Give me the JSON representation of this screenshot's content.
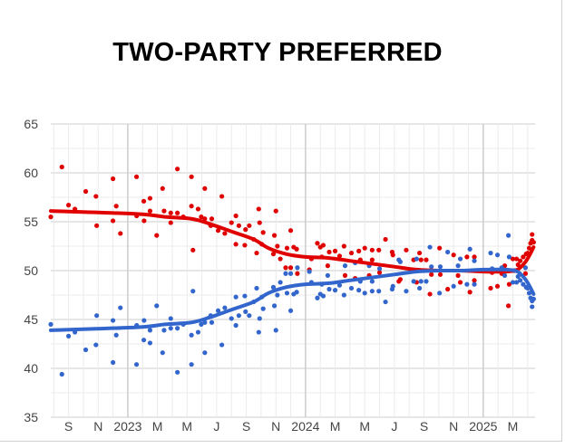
{
  "chart_data": {
    "type": "scatter",
    "title": "TWO-PARTY PREFERRED",
    "xlabel": "",
    "ylabel": "",
    "x_units": "months since January 2023",
    "xlim": [
      -5.2,
      27.5
    ],
    "ylim": [
      35,
      65
    ],
    "yticks": [
      35,
      40,
      45,
      50,
      55,
      60,
      65
    ],
    "xticks": [
      {
        "m": -4,
        "label": "S"
      },
      {
        "m": -2,
        "label": "N"
      },
      {
        "m": 0,
        "label": "2023"
      },
      {
        "m": 2,
        "label": "M"
      },
      {
        "m": 4,
        "label": "M"
      },
      {
        "m": 6,
        "label": "J"
      },
      {
        "m": 8,
        "label": "S"
      },
      {
        "m": 10,
        "label": "N"
      },
      {
        "m": 12,
        "label": "2024"
      },
      {
        "m": 14,
        "label": "M"
      },
      {
        "m": 16,
        "label": "M"
      },
      {
        "m": 18,
        "label": "J"
      },
      {
        "m": 20,
        "label": "S"
      },
      {
        "m": 22,
        "label": "N"
      },
      {
        "m": 24,
        "label": "2025"
      },
      {
        "m": 26,
        "label": "M"
      }
    ],
    "grid": true,
    "legend": "none",
    "colors": {
      "red": "#e00000",
      "blue": "#3366cc"
    },
    "series": [
      {
        "key": "red",
        "points": [
          [
            -5.2,
            55.5
          ],
          [
            -4.45,
            60.6
          ],
          [
            -4.0,
            56.7
          ],
          [
            -3.57,
            56.3
          ],
          [
            -2.84,
            58.1
          ],
          [
            -2.15,
            57.6
          ],
          [
            -2.1,
            54.6
          ],
          [
            -1.0,
            59.4
          ],
          [
            -1.0,
            55.1
          ],
          [
            -0.78,
            56.6
          ],
          [
            -0.5,
            53.8
          ],
          [
            0.59,
            59.6
          ],
          [
            0.6,
            55.6
          ],
          [
            1.08,
            57.1
          ],
          [
            1.1,
            55.1
          ],
          [
            1.5,
            57.4
          ],
          [
            1.5,
            56.1
          ],
          [
            1.95,
            53.6
          ],
          [
            2.35,
            58.4
          ],
          [
            2.45,
            56.1
          ],
          [
            2.9,
            55.9
          ],
          [
            2.9,
            54.9
          ],
          [
            3.35,
            60.4
          ],
          [
            3.35,
            55.9
          ],
          [
            3.75,
            55.5
          ],
          [
            4.3,
            59.6
          ],
          [
            4.3,
            56.6
          ],
          [
            4.4,
            52.1
          ],
          [
            4.75,
            56.3
          ],
          [
            4.96,
            55.5
          ],
          [
            5.2,
            58.4
          ],
          [
            5.2,
            55.3
          ],
          [
            5.6,
            54.6
          ],
          [
            5.67,
            55.3
          ],
          [
            6.1,
            54.1
          ],
          [
            6.35,
            57.6
          ],
          [
            6.55,
            53.8
          ],
          [
            7.0,
            54.9
          ],
          [
            7.3,
            55.6
          ],
          [
            7.3,
            52.7
          ],
          [
            7.5,
            54.6
          ],
          [
            7.95,
            54.2
          ],
          [
            8.2,
            54.6
          ],
          [
            7.9,
            52.6
          ],
          [
            8.5,
            53.2
          ],
          [
            8.84,
            56.3
          ],
          [
            8.9,
            54.9
          ],
          [
            8.7,
            51.8
          ],
          [
            9.05,
            52.7
          ],
          [
            9.14,
            53.9
          ],
          [
            9.83,
            51.7
          ],
          [
            9.9,
            53.6
          ],
          [
            10.0,
            56.1
          ],
          [
            10.1,
            52.5
          ],
          [
            10.3,
            51.2
          ],
          [
            10.75,
            52.3
          ],
          [
            10.66,
            50.3
          ],
          [
            11.0,
            54.1
          ],
          [
            11.0,
            50.3
          ],
          [
            11.2,
            52.4
          ],
          [
            11.4,
            52.2
          ],
          [
            11.45,
            49.7
          ],
          [
            12.26,
            50.1
          ],
          [
            12.4,
            51.2
          ],
          [
            12.8,
            52.8
          ],
          [
            13.0,
            52.4
          ],
          [
            13.2,
            52.6
          ],
          [
            13.1,
            51.4
          ],
          [
            13.5,
            50.5
          ],
          [
            13.6,
            51.9
          ],
          [
            14.0,
            52.0
          ],
          [
            14.3,
            51.5
          ],
          [
            14.6,
            52.5
          ],
          [
            14.67,
            49.5
          ],
          [
            15.1,
            51.8
          ],
          [
            15.35,
            49.2
          ],
          [
            15.6,
            52.0
          ],
          [
            15.7,
            51.1
          ],
          [
            16.0,
            52.3
          ],
          [
            16.3,
            49.5
          ],
          [
            16.5,
            52.1
          ],
          [
            16.5,
            51.1
          ],
          [
            16.95,
            52.1
          ],
          [
            17.0,
            49.8
          ],
          [
            17.4,
            53.2
          ],
          [
            17.85,
            51.9
          ],
          [
            17.9,
            51.6
          ],
          [
            18.3,
            48.9
          ],
          [
            18.4,
            49.1
          ],
          [
            18.8,
            52.1
          ],
          [
            19.3,
            51.1
          ],
          [
            19.5,
            48.8
          ],
          [
            19.7,
            51.8
          ],
          [
            19.8,
            51.1
          ],
          [
            20.15,
            51.1
          ],
          [
            20.4,
            47.6
          ],
          [
            20.5,
            49.6
          ],
          [
            21.05,
            52.3
          ],
          [
            21.1,
            49.6
          ],
          [
            21.6,
            48.1
          ],
          [
            22.0,
            51.6
          ],
          [
            22.3,
            49.5
          ],
          [
            22.45,
            48.8
          ],
          [
            22.9,
            51.4
          ],
          [
            23.1,
            47.8
          ],
          [
            23.4,
            51.4
          ],
          [
            23.4,
            49.0
          ],
          [
            24.5,
            48.2
          ],
          [
            24.6,
            49.8
          ],
          [
            24.96,
            48.4
          ],
          [
            25.25,
            49.7
          ],
          [
            25.45,
            50.5
          ],
          [
            25.7,
            46.4
          ],
          [
            25.75,
            48.6
          ],
          [
            26.0,
            51.2
          ],
          [
            26.1,
            50.0
          ],
          [
            26.25,
            51.2
          ],
          [
            26.35,
            50.6
          ],
          [
            26.5,
            51.0
          ],
          [
            26.7,
            51.4
          ],
          [
            26.85,
            49.7
          ],
          [
            26.9,
            51.7
          ],
          [
            27.0,
            51.8
          ],
          [
            27.1,
            52.3
          ],
          [
            27.2,
            52.8
          ],
          [
            27.3,
            53.1
          ],
          [
            27.3,
            53.7
          ],
          [
            27.4,
            52.9
          ]
        ],
        "trend": [
          [
            -5.2,
            56.1
          ],
          [
            0.6,
            55.8
          ],
          [
            2.5,
            55.5
          ],
          [
            4.3,
            55.3
          ],
          [
            5.5,
            54.8
          ],
          [
            7,
            54.0
          ],
          [
            8.5,
            53.2
          ],
          [
            9.5,
            52.3
          ],
          [
            10.7,
            51.7
          ],
          [
            12,
            51.4
          ],
          [
            13.5,
            51.3
          ],
          [
            15,
            51.0
          ],
          [
            16.5,
            50.7
          ],
          [
            18,
            50.4
          ],
          [
            19.5,
            50.1
          ],
          [
            21,
            50.0
          ],
          [
            22.5,
            50.0
          ],
          [
            24,
            49.9
          ],
          [
            25.5,
            49.9
          ],
          [
            26.3,
            50.1
          ],
          [
            26.8,
            50.8
          ],
          [
            27.1,
            51.5
          ],
          [
            27.4,
            52.4
          ]
        ]
      },
      {
        "key": "blue",
        "points": "mirror",
        "trend": "mirror"
      }
    ]
  }
}
